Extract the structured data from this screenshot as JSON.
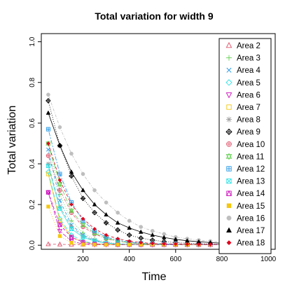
{
  "chart_data": {
    "type": "line",
    "title": "Total variation for width 9",
    "xlabel": "Time",
    "ylabel": "Total variation",
    "xlim": [
      20,
      1030
    ],
    "ylim": [
      -0.02,
      1.04
    ],
    "xticks": [
      200,
      400,
      600,
      800,
      1000
    ],
    "yticks": [
      0.0,
      0.2,
      0.4,
      0.6,
      0.8,
      1.0
    ],
    "grid": false,
    "legend_position": "top-right",
    "x": [
      50,
      100,
      150,
      200,
      250,
      300,
      350,
      400,
      450,
      500,
      550,
      600,
      650,
      700,
      750,
      800,
      850,
      900,
      950,
      1000
    ],
    "series": [
      {
        "name": "Area 2",
        "color": "#DF536B",
        "marker": "triangle-open",
        "lty": "dashed",
        "values": [
          0.005,
          0.004,
          0.003,
          0.003,
          0.003,
          0.003,
          0.003,
          0.003,
          0.003,
          0.003,
          0.003,
          0.003,
          0.003,
          0.003,
          0.003,
          0.003,
          0.003,
          0.003,
          0.003,
          0.003
        ]
      },
      {
        "name": "Area 3",
        "color": "#61D04F",
        "marker": "plus",
        "lty": "dotted",
        "values": [
          0.5,
          0.25,
          0.12,
          0.06,
          0.03,
          0.015,
          0.008,
          0.005,
          0.004,
          0.003,
          0.003,
          0.003,
          0.003,
          0.003,
          0.003,
          0.003,
          0.003,
          0.003,
          0.003,
          0.003
        ]
      },
      {
        "name": "Area 4",
        "color": "#2297E6",
        "marker": "x",
        "lty": "dotdash",
        "values": [
          0.47,
          0.22,
          0.1,
          0.05,
          0.025,
          0.012,
          0.007,
          0.005,
          0.004,
          0.003,
          0.003,
          0.003,
          0.003,
          0.003,
          0.003,
          0.003,
          0.003,
          0.003,
          0.003,
          0.003
        ]
      },
      {
        "name": "Area 5",
        "color": "#28E2E5",
        "marker": "diamond-open",
        "lty": "longdash",
        "values": [
          0.36,
          0.13,
          0.05,
          0.02,
          0.008,
          0.004,
          0.003,
          0.003,
          0.003,
          0.003,
          0.003,
          0.003,
          0.003,
          0.003,
          0.003,
          0.003,
          0.003,
          0.003,
          0.003,
          0.003
        ]
      },
      {
        "name": "Area 6",
        "color": "#CD0BBC",
        "marker": "triangle-down-open",
        "lty": "twodash",
        "values": [
          0.26,
          0.07,
          0.02,
          0.006,
          0.003,
          0.003,
          0.003,
          0.003,
          0.003,
          0.003,
          0.003,
          0.003,
          0.003,
          0.003,
          0.003,
          0.003,
          0.003,
          0.003,
          0.003,
          0.003
        ]
      },
      {
        "name": "Area 7",
        "color": "#F5C710",
        "marker": "square-open",
        "lty": "solid",
        "values": [
          0.35,
          0.12,
          0.04,
          0.015,
          0.006,
          0.004,
          0.003,
          0.003,
          0.003,
          0.003,
          0.003,
          0.003,
          0.003,
          0.003,
          0.003,
          0.003,
          0.003,
          0.003,
          0.003,
          0.003
        ]
      },
      {
        "name": "Area 8",
        "color": "#9E9E9E",
        "marker": "asterisk",
        "lty": "dashed",
        "values": [
          0.4,
          0.19,
          0.09,
          0.045,
          0.022,
          0.012,
          0.007,
          0.005,
          0.004,
          0.003,
          0.003,
          0.003,
          0.003,
          0.003,
          0.003,
          0.003,
          0.003,
          0.003,
          0.003,
          0.003
        ]
      },
      {
        "name": "Area 9",
        "color": "#000000",
        "marker": "diamond-plus",
        "lty": "dotted",
        "values": [
          0.71,
          0.49,
          0.34,
          0.23,
          0.16,
          0.11,
          0.075,
          0.05,
          0.035,
          0.025,
          0.018,
          0.013,
          0.01,
          0.008,
          0.006,
          0.005,
          0.004,
          0.004,
          0.004,
          0.004
        ]
      },
      {
        "name": "Area 10",
        "color": "#DF536B",
        "marker": "circle-plus",
        "lty": "dotdash",
        "values": [
          0.44,
          0.27,
          0.16,
          0.09,
          0.055,
          0.032,
          0.02,
          0.012,
          0.008,
          0.006,
          0.005,
          0.004,
          0.004,
          0.003,
          0.003,
          0.003,
          0.003,
          0.003,
          0.003,
          0.003
        ]
      },
      {
        "name": "Area 11",
        "color": "#61D04F",
        "marker": "triangle-updown",
        "lty": "longdash",
        "values": [
          0.5,
          0.3,
          0.17,
          0.1,
          0.06,
          0.035,
          0.02,
          0.012,
          0.008,
          0.006,
          0.004,
          0.004,
          0.003,
          0.003,
          0.003,
          0.003,
          0.003,
          0.003,
          0.003,
          0.003
        ]
      },
      {
        "name": "Area 12",
        "color": "#2297E6",
        "marker": "square-plus",
        "lty": "twodash",
        "values": [
          0.57,
          0.35,
          0.21,
          0.12,
          0.07,
          0.04,
          0.025,
          0.015,
          0.01,
          0.008,
          0.006,
          0.005,
          0.004,
          0.004,
          0.004,
          0.003,
          0.003,
          0.003,
          0.003,
          0.003
        ]
      },
      {
        "name": "Area 13",
        "color": "#28E2E5",
        "marker": "square-x",
        "lty": "solid",
        "values": [
          0.39,
          0.18,
          0.08,
          0.04,
          0.02,
          0.01,
          0.006,
          0.004,
          0.003,
          0.003,
          0.003,
          0.003,
          0.003,
          0.003,
          0.003,
          0.003,
          0.003,
          0.003,
          0.003,
          0.003
        ]
      },
      {
        "name": "Area 14",
        "color": "#CD0BBC",
        "marker": "square-triangle",
        "lty": "dashed",
        "values": [
          0.26,
          0.1,
          0.04,
          0.015,
          0.006,
          0.004,
          0.003,
          0.003,
          0.003,
          0.003,
          0.003,
          0.003,
          0.003,
          0.003,
          0.003,
          0.003,
          0.003,
          0.003,
          0.003,
          0.003
        ]
      },
      {
        "name": "Area 15",
        "color": "#F5C710",
        "marker": "square-filled",
        "lty": "dotted",
        "values": [
          0.19,
          0.045,
          0.012,
          0.004,
          0.003,
          0.003,
          0.003,
          0.003,
          0.003,
          0.003,
          0.003,
          0.003,
          0.003,
          0.003,
          0.003,
          0.003,
          0.003,
          0.003,
          0.003,
          0.003
        ]
      },
      {
        "name": "Area 16",
        "color": "#BEBEBE",
        "marker": "circle-filled",
        "lty": "dotdash",
        "values": [
          0.74,
          0.58,
          0.45,
          0.35,
          0.27,
          0.21,
          0.16,
          0.12,
          0.09,
          0.07,
          0.055,
          0.04,
          0.032,
          0.025,
          0.02,
          0.016,
          0.013,
          0.011,
          0.01,
          0.009
        ]
      },
      {
        "name": "Area 17",
        "color": "#000000",
        "marker": "triangle-filled",
        "lty": "solid",
        "values": [
          0.65,
          0.49,
          0.36,
          0.27,
          0.2,
          0.15,
          0.11,
          0.085,
          0.065,
          0.05,
          0.038,
          0.029,
          0.022,
          0.017,
          0.013,
          0.01,
          0.008,
          0.007,
          0.006,
          0.006
        ]
      },
      {
        "name": "Area 18",
        "color": "#E0001A",
        "marker": "diamond-filled",
        "lty": "dashed",
        "values": [
          0.5,
          0.32,
          0.2,
          0.13,
          0.08,
          0.05,
          0.032,
          0.02,
          0.013,
          0.009,
          0.007,
          0.006,
          0.005,
          0.004,
          0.004,
          0.004,
          0.003,
          0.003,
          0.003,
          0.003
        ]
      }
    ]
  }
}
